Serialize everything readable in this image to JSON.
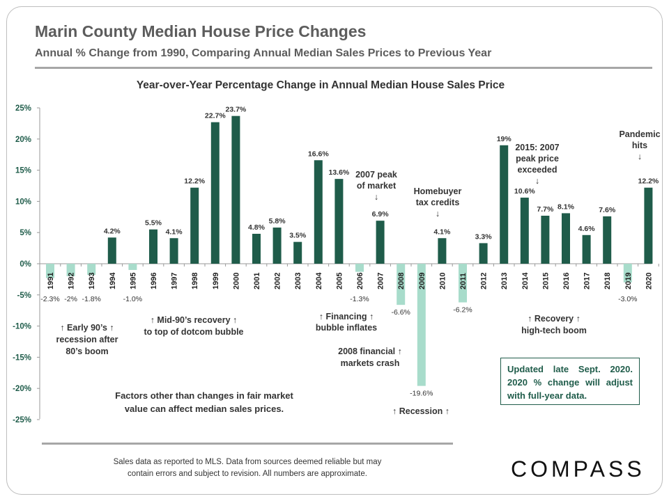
{
  "header": {
    "title": "Marin County Median House Price Changes",
    "subtitle": "Annual % Change from 1990, Comparing Annual Median Sales Prices to Previous Year"
  },
  "colors": {
    "positive": "#1f5c4a",
    "negative": "#a8dccb",
    "text": "#333333",
    "accent": "#1f5c4a"
  },
  "chart_data": {
    "type": "bar",
    "title": "Year-over-Year Percentage Change in Annual Median House Sales Price",
    "xlabel": "",
    "ylabel": "",
    "ylim": [
      -25,
      25
    ],
    "yticks": [
      25,
      20,
      15,
      10,
      5,
      0,
      -5,
      -10,
      -15,
      -20,
      -25
    ],
    "ytick_labels": [
      "25%",
      "20%",
      "15%",
      "10%",
      "5%",
      "0%",
      "-5%",
      "-10%",
      "-15%",
      "-20%",
      "-25%"
    ],
    "grid": false,
    "categories": [
      "1991",
      "1992",
      "1993",
      "1994",
      "1995",
      "1996",
      "1997",
      "1998",
      "1999",
      "2000",
      "2001",
      "2002",
      "2003",
      "2004",
      "2005",
      "2006",
      "2007",
      "2008",
      "2009",
      "2010",
      "2011",
      "2012",
      "2013",
      "2014",
      "2015",
      "2016",
      "2017",
      "2018",
      "2019",
      "2020"
    ],
    "values": [
      -2.3,
      -2,
      -1.8,
      4.2,
      -1.0,
      5.5,
      4.1,
      12.2,
      22.7,
      23.7,
      4.8,
      5.8,
      3.5,
      16.6,
      13.6,
      -1.3,
      6.9,
      -6.6,
      -19.6,
      4.1,
      -6.2,
      3.3,
      19,
      10.6,
      7.7,
      8.1,
      4.6,
      7.6,
      -3.0,
      12.2
    ],
    "data_labels": [
      "-2.3%",
      "-2%",
      "-1.8%",
      "4.2%",
      "-1.0%",
      "5.5%",
      "4.1%",
      "12.2%",
      "22.7%",
      "23.7%",
      "4.8%",
      "5.8%",
      "3.5%",
      "16.6%",
      "13.6%",
      "-1.3%",
      "6.9%",
      "-6.6%",
      "-19.6%",
      "4.1%",
      "-6.2%",
      "3.3%",
      "19%",
      "10.6%",
      "7.7%",
      "8.1%",
      "4.6%",
      "7.6%",
      "-3.0%",
      "12.2%"
    ],
    "annotations": [
      {
        "id": "early90s",
        "lines": [
          "↑ Early 90’s ↑",
          "recession after",
          "80’s boom"
        ]
      },
      {
        "id": "mid90s",
        "lines": [
          "↑ Mid-90’s recovery ↑",
          "to top of dotcom bubble"
        ]
      },
      {
        "id": "financing",
        "lines": [
          "↑ Financing ↑",
          "bubble inflates"
        ]
      },
      {
        "id": "crash2008",
        "lines": [
          "2008 financial ↑",
          "markets crash"
        ]
      },
      {
        "id": "recession",
        "lines": [
          "↑ Recession ↑"
        ]
      },
      {
        "id": "peak2007",
        "lines": [
          "2007 peak",
          "of market",
          "↓"
        ]
      },
      {
        "id": "homebuyer",
        "lines": [
          "Homebuyer",
          "tax credits",
          "↓"
        ]
      },
      {
        "id": "peak2015",
        "lines": [
          "2015: 2007",
          "peak price",
          "exceeded",
          "↓"
        ]
      },
      {
        "id": "pandemic",
        "lines": [
          "Pandemic",
          "hits",
          "↓"
        ]
      },
      {
        "id": "recovery",
        "lines": [
          "↑       Recovery     ↑",
          "high-tech boom"
        ]
      },
      {
        "id": "factors",
        "lines": [
          "Factors other than changes in fair market",
          "value can affect median sales prices."
        ]
      }
    ]
  },
  "update_note": "Updated late Sept. 2020. 2020 % change will adjust with full-year data.",
  "footnote": "Sales data as reported to MLS. Data from sources deemed reliable but may\ncontain errors and subject to revision. All numbers are approximate.",
  "logo": "COMPASS"
}
